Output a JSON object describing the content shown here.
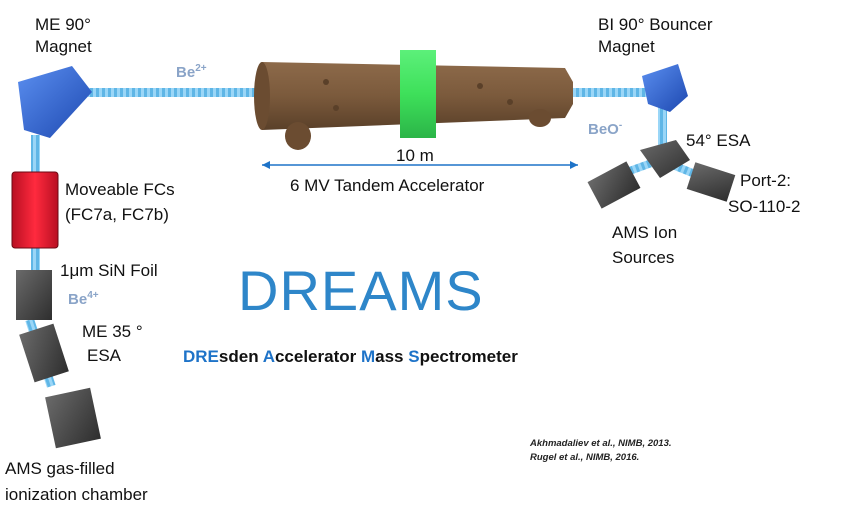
{
  "labels": {
    "me90_line1": "ME 90°",
    "me90_line2": "Magnet",
    "bi90_line1": "BI 90° Bouncer",
    "bi90_line2": "Magnet",
    "esa54": "54° ESA",
    "port2_line1": "Port-2:",
    "port2_line2": "SO-110-2",
    "ams_sources_line1": "AMS Ion",
    "ams_sources_line2": "Sources",
    "fc_line1": "Moveable FCs",
    "fc_line2": "(FC7a, FC7b)",
    "foil": "1μm SiN Foil",
    "me35_line1": "ME 35 °",
    "me35_line2": "ESA",
    "chamber_line1": "AMS gas-filled",
    "chamber_line2": "ionization chamber",
    "distance": "10 m",
    "accelerator": "6 MV Tandem Accelerator"
  },
  "ions": {
    "be2_base": "Be",
    "be2_sup": "2+",
    "beo_base": "BeO",
    "beo_sup": "-",
    "be4_base": "Be",
    "be4_sup": "4+"
  },
  "title": "DREAMS",
  "subtitle": {
    "p1": "DRE",
    "p2": "sden ",
    "p3": "A",
    "p4": "ccelerator ",
    "p5": "M",
    "p6": "ass ",
    "p7": "S",
    "p8": "pectrometer"
  },
  "refs": {
    "r1": "Akhmadaliev et al., NIMB, 2013.",
    "r2": "Rugel et al., NIMB, 2016."
  },
  "colors": {
    "title": "#2e86c9",
    "highlight": "#1e73c8",
    "ion_label": "#8aa4c8",
    "accelerator_body": "#7b5a3c",
    "accelerator_band": "#3ee05a",
    "beamline": "#7fc6f0",
    "magnet": "#2f6ad8",
    "faraday_cup": "#e8152b",
    "gray_component": "#4a4a4a"
  }
}
